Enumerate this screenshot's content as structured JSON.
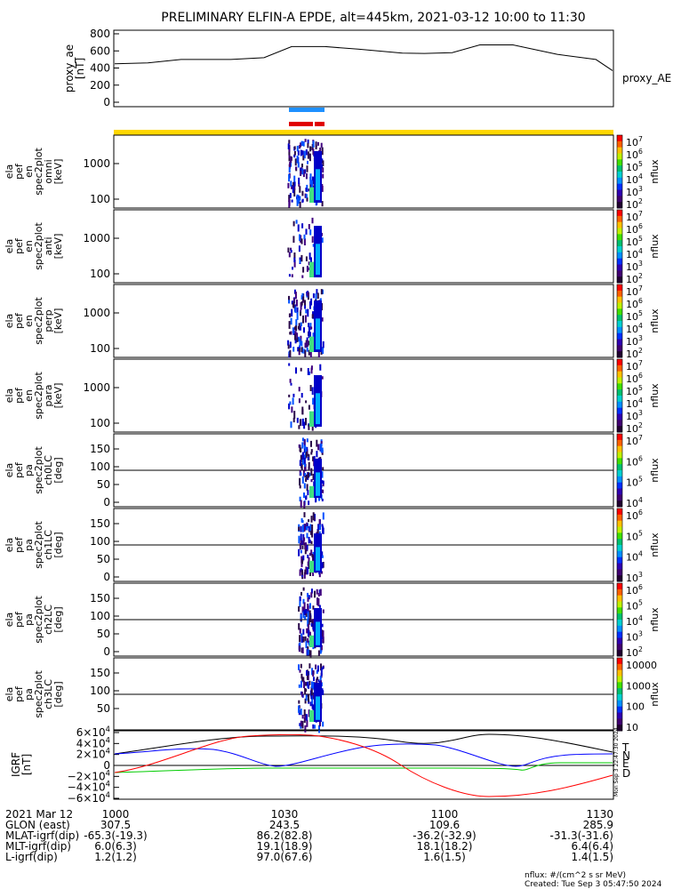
{
  "title": "PRELIMINARY ELFIN-A EPDE, alt=445km, 2021-03-12 10:00 to 11:30",
  "ae_panel": {
    "ylabel": [
      "proxy_ae",
      "[nT]"
    ],
    "series_label": "proxy_AE",
    "yticks": [
      "800",
      "600",
      "400",
      "200",
      "0"
    ]
  },
  "spectrogram_panels": [
    {
      "ylabel": [
        "ela",
        "pef",
        "en",
        "spec2plot",
        "omni",
        "[keV]"
      ],
      "yticks": [
        "1000",
        "100"
      ],
      "cbar_label": "nflux",
      "cbar_ticks": [
        "10^7",
        "10^6",
        "10^5",
        "10^4",
        "10^3",
        "10^2"
      ]
    },
    {
      "ylabel": [
        "ela",
        "pef",
        "en",
        "spec2plot",
        "anti",
        "[keV]"
      ],
      "yticks": [
        "1000",
        "100"
      ],
      "cbar_label": "nflux",
      "cbar_ticks": [
        "10^7",
        "10^6",
        "10^5",
        "10^4",
        "10^3",
        "10^2"
      ]
    },
    {
      "ylabel": [
        "ela",
        "pef",
        "en",
        "spec2plot",
        "perp",
        "[keV]"
      ],
      "yticks": [
        "1000",
        "100"
      ],
      "cbar_label": "nflux",
      "cbar_ticks": [
        "10^7",
        "10^6",
        "10^5",
        "10^4",
        "10^3",
        "10^2"
      ]
    },
    {
      "ylabel": [
        "ela",
        "pef",
        "en",
        "spec2plot",
        "para",
        "[keV]"
      ],
      "yticks": [
        "1000",
        "100"
      ],
      "cbar_label": "nflux",
      "cbar_ticks": [
        "10^7",
        "10^6",
        "10^5",
        "10^4",
        "10^3",
        "10^2"
      ]
    },
    {
      "ylabel": [
        "ela",
        "pef",
        "pa",
        "spec2plot",
        "ch0LC",
        "[deg]"
      ],
      "yticks": [
        "150",
        "100",
        "50",
        "0"
      ],
      "cbar_label": "nflux",
      "cbar_ticks": [
        "10^7",
        "10^6",
        "10^5",
        "10^4"
      ]
    },
    {
      "ylabel": [
        "ela",
        "pef",
        "pa",
        "spec2plot",
        "ch1LC",
        "[deg]"
      ],
      "yticks": [
        "150",
        "100",
        "50",
        "0"
      ],
      "cbar_label": "nflux",
      "cbar_ticks": [
        "10^6",
        "10^5",
        "10^4",
        "10^3"
      ]
    },
    {
      "ylabel": [
        "ela",
        "pef",
        "pa",
        "spec2plot",
        "ch2LC",
        "[deg]"
      ],
      "yticks": [
        "150",
        "100",
        "50",
        "0"
      ],
      "cbar_label": "nflux",
      "cbar_ticks": [
        "10^6",
        "10^5",
        "10^4",
        "10^3",
        "10^2"
      ]
    },
    {
      "ylabel": [
        "ela",
        "pef",
        "pa",
        "spec2plot",
        "ch3LC",
        "[deg]"
      ],
      "yticks": [
        "150",
        "100",
        "50"
      ],
      "cbar_label": "nflux",
      "cbar_ticks": [
        "10000",
        "1000",
        "100",
        "10"
      ]
    }
  ],
  "igrf_panel": {
    "ylabel": [
      "IGRF",
      "[nT]"
    ],
    "yticks": [
      "6×10^4",
      "4×10^4",
      "2×10^4",
      "0",
      "−2×10^4",
      "−4×10^4",
      "−6×10^4"
    ],
    "legend": [
      {
        "label": "T",
        "color": "#000000"
      },
      {
        "label": "N",
        "color": "#0000ff"
      },
      {
        "label": "E",
        "color": "#00cc00"
      },
      {
        "label": "D",
        "color": "#ff0000"
      }
    ],
    "side_stamp": "Mon Sep  3 22:47:30 2024"
  },
  "chart_data": {
    "type": "line",
    "x_range": [
      "1000",
      "1130"
    ],
    "series": [
      {
        "name": "proxy_AE",
        "x": [
          "10:00",
          "10:06",
          "10:12",
          "10:21",
          "10:27",
          "10:32",
          "10:38",
          "10:44",
          "10:52",
          "10:56",
          "11:01",
          "11:06",
          "11:12",
          "11:20",
          "11:27",
          "11:30"
        ],
        "values": [
          450,
          460,
          500,
          500,
          520,
          650,
          650,
          620,
          575,
          570,
          580,
          670,
          670,
          560,
          500,
          370
        ]
      }
    ],
    "ae_ylim": [
      0,
      850
    ],
    "igrf_ylim": [
      -60000,
      70000
    ]
  },
  "footer": {
    "date": "2021 Mar 12",
    "rows": [
      {
        "label": "GLON (east)",
        "values": [
          "1000",
          "1030",
          "1100",
          "1130"
        ]
      },
      {
        "label": "MLAT-igrf(dip)",
        "values": [
          "307.5",
          "243.5",
          "109.6",
          "285.9"
        ]
      },
      {
        "label": "MLT-igrf(dip)",
        "values": [
          "-65.3(-19.3)",
          "86.2(82.8)",
          "-36.2(-32.9)",
          "-31.3(-31.6)"
        ]
      },
      {
        "label": "L-igrf(dip)",
        "values": [
          "6.0(6.3)",
          "19.1(18.9)",
          "18.1(18.2)",
          "6.4(6.4)"
        ]
      },
      {
        "label": "",
        "values": [
          "1.2(1.2)",
          "97.0(67.6)",
          "1.6(1.5)",
          "1.4(1.5)"
        ]
      }
    ],
    "units_note": "nflux: #/(cm^2 s sr MeV)",
    "created": "Created: Tue Sep  3 05:47:50 2024"
  }
}
